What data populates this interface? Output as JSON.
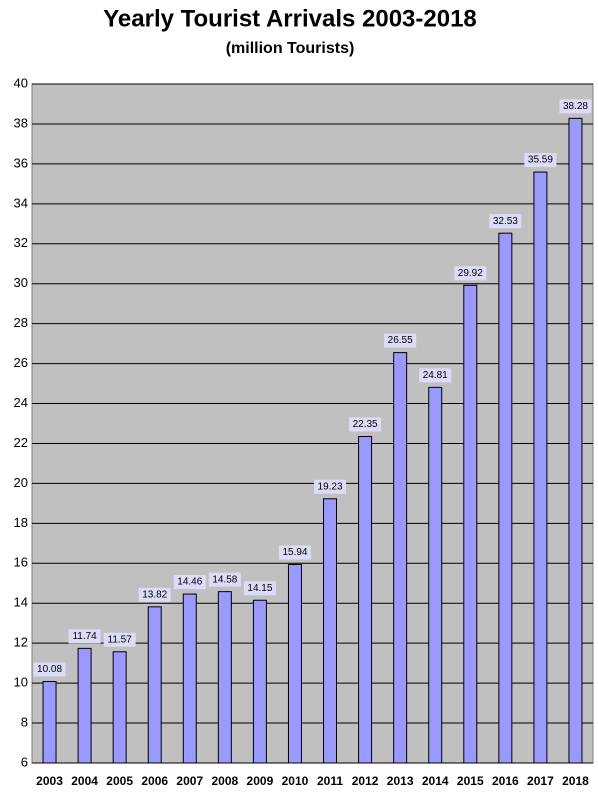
{
  "chart_data": {
    "type": "bar",
    "title": "Yearly Tourist Arrivals 2003-2018",
    "subtitle": "(million Tourists)",
    "categories": [
      "2003",
      "2004",
      "2005",
      "2006",
      "2007",
      "2008",
      "2009",
      "2010",
      "2011",
      "2012",
      "2013",
      "2014",
      "2015",
      "2016",
      "2017",
      "2018"
    ],
    "values": [
      10.08,
      11.74,
      11.57,
      13.82,
      14.46,
      14.58,
      14.15,
      15.94,
      19.23,
      22.35,
      26.55,
      24.81,
      29.92,
      32.53,
      35.59,
      38.28
    ],
    "color": "#9999ff",
    "ylim": [
      6,
      40
    ],
    "yticks": [
      6,
      8,
      10,
      12,
      14,
      16,
      18,
      20,
      22,
      24,
      26,
      28,
      30,
      32,
      34,
      36,
      38,
      40
    ],
    "grid": true
  }
}
